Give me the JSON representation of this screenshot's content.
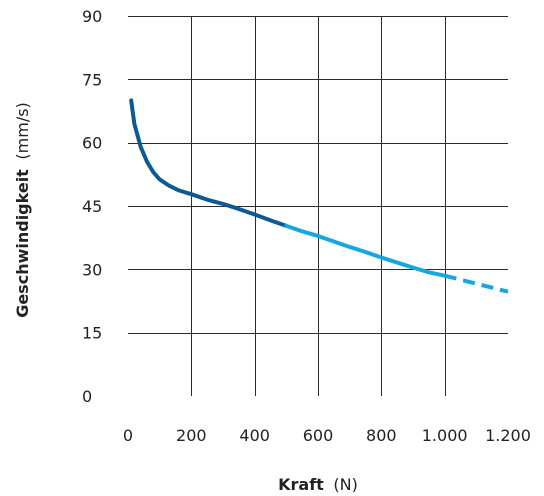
{
  "chart_data": {
    "type": "line",
    "title": "",
    "xlabel": {
      "bold": "Kraft",
      "unit": "(N)"
    },
    "ylabel": {
      "bold": "Geschwindigkeit",
      "unit": "(mm/s)"
    },
    "xlim": [
      0,
      1200
    ],
    "ylim": [
      0,
      90
    ],
    "x_ticks": [
      {
        "value": 0,
        "label": "0"
      },
      {
        "value": 200,
        "label": "200"
      },
      {
        "value": 400,
        "label": "400"
      },
      {
        "value": 600,
        "label": "600"
      },
      {
        "value": 800,
        "label": "800"
      },
      {
        "value": 1000,
        "label": "1.000"
      },
      {
        "value": 1200,
        "label": "1.200"
      }
    ],
    "y_ticks": [
      {
        "value": 0,
        "label": "0"
      },
      {
        "value": 15,
        "label": "15"
      },
      {
        "value": 30,
        "label": "30"
      },
      {
        "value": 45,
        "label": "45"
      },
      {
        "value": 60,
        "label": "60"
      },
      {
        "value": 75,
        "label": "75"
      },
      {
        "value": 90,
        "label": "90"
      }
    ],
    "grid": true,
    "legend": "none",
    "colors": {
      "dark_segment": "#0c5a93",
      "light_segment": "#18a6e2",
      "grid": "#2b2b2b",
      "text": "#222222"
    },
    "series": [
      {
        "style": "solid",
        "color_key": "dark_segment",
        "points": [
          [
            10,
            70
          ],
          [
            20,
            64.5
          ],
          [
            40,
            59
          ],
          [
            60,
            55.5
          ],
          [
            80,
            53
          ],
          [
            100,
            51.3
          ],
          [
            130,
            49.8
          ],
          [
            160,
            48.7
          ],
          [
            200,
            47.8
          ],
          [
            250,
            46.5
          ],
          [
            300,
            45.5
          ],
          [
            350,
            44.3
          ],
          [
            400,
            43
          ],
          [
            450,
            41.6
          ],
          [
            500,
            40.3
          ]
        ]
      },
      {
        "style": "solid",
        "color_key": "light_segment",
        "points": [
          [
            500,
            40.3
          ],
          [
            550,
            39
          ],
          [
            600,
            37.9
          ],
          [
            650,
            36.6
          ],
          [
            700,
            35.3
          ],
          [
            750,
            34.1
          ],
          [
            800,
            32.8
          ],
          [
            850,
            31.6
          ],
          [
            900,
            30.4
          ],
          [
            950,
            29.3
          ],
          [
            1000,
            28.5
          ]
        ]
      },
      {
        "style": "dashed",
        "color_key": "light_segment",
        "points": [
          [
            1000,
            28.5
          ],
          [
            1100,
            26.6
          ],
          [
            1200,
            24.7
          ]
        ]
      }
    ]
  }
}
